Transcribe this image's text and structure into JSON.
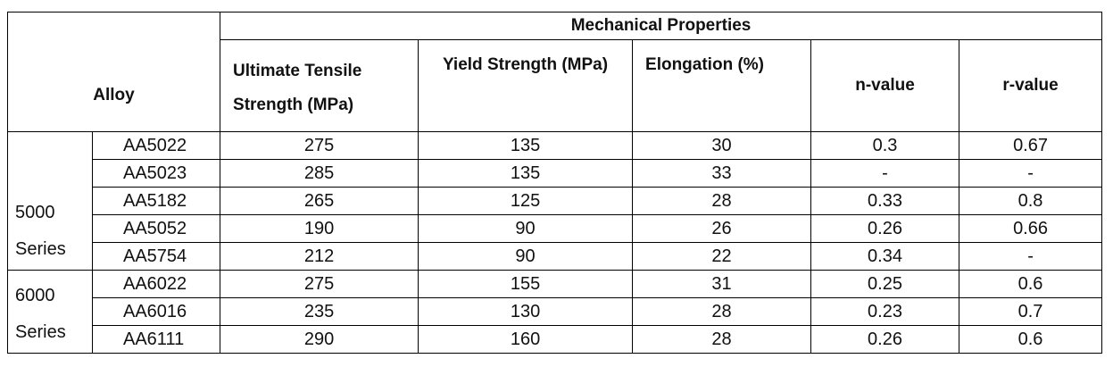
{
  "table": {
    "alloy_header": "Alloy",
    "group_header": "Mechanical Properties",
    "columns": [
      "Ultimate Tensile Strength (MPa)",
      "Yield Strength (MPa)",
      "Elongation (%)",
      "n-value",
      "r-value"
    ],
    "col_uts_line1": "Ultimate Tensile",
    "col_uts_line2": "Strength (MPa)",
    "series": [
      {
        "label_line1": "5000",
        "label_line2": "Series",
        "rows": [
          {
            "alloy": "AA5022",
            "uts": "275",
            "ys": "135",
            "el": "30",
            "n": "0.3",
            "r": "0.67"
          },
          {
            "alloy": "AA5023",
            "uts": "285",
            "ys": "135",
            "el": "33",
            "n": "-",
            "r": "-"
          },
          {
            "alloy": "AA5182",
            "uts": "265",
            "ys": "125",
            "el": "28",
            "n": "0.33",
            "r": "0.8"
          },
          {
            "alloy": "AA5052",
            "uts": "190",
            "ys": "90",
            "el": "26",
            "n": "0.26",
            "r": "0.66"
          },
          {
            "alloy": "AA5754",
            "uts": "212",
            "ys": "90",
            "el": "22",
            "n": "0.34",
            "r": "-"
          }
        ]
      },
      {
        "label_line1": "6000",
        "label_line2": "Series",
        "rows": [
          {
            "alloy": "AA6022",
            "uts": "275",
            "ys": "155",
            "el": "31",
            "n": "0.25",
            "r": "0.6"
          },
          {
            "alloy": "AA6016",
            "uts": "235",
            "ys": "130",
            "el": "28",
            "n": "0.23",
            "r": "0.7"
          },
          {
            "alloy": "AA6111",
            "uts": "290",
            "ys": "160",
            "el": "28",
            "n": "0.26",
            "r": "0.6"
          }
        ]
      }
    ]
  }
}
